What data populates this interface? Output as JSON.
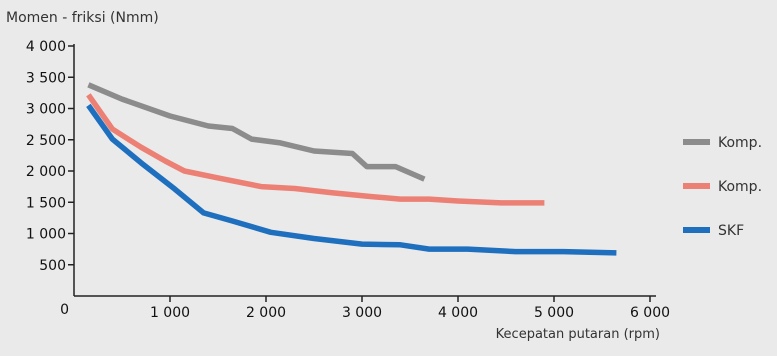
{
  "chart_data": {
    "type": "line",
    "title": "",
    "ylabel": "Momen - friksi (Nmm)",
    "xlabel": "Kecepatan putaran (rpm)",
    "xlim": [
      0,
      6000
    ],
    "ylim": [
      0,
      4000
    ],
    "x_ticks": [
      1000,
      2000,
      3000,
      4000,
      5000,
      6000
    ],
    "x_tick_labels": [
      "1 000",
      "2 000",
      "3 000",
      "4 000",
      "5 000",
      "6 000"
    ],
    "y_ticks": [
      500,
      1000,
      1500,
      2000,
      2500,
      3000,
      3500,
      4000
    ],
    "y_tick_labels": [
      "500",
      "1 000",
      "1 500",
      "2 000",
      "2 500",
      "3 000",
      "3 500",
      "4 000"
    ],
    "origin_label": "0",
    "grid": false,
    "legend_position": "right",
    "series": [
      {
        "name": "Komp.",
        "color": "#8c8c8c",
        "x": [
          150,
          500,
          1000,
          1400,
          1650,
          1850,
          2150,
          2500,
          2900,
          3050,
          3350,
          3650
        ],
        "y": [
          3380,
          3150,
          2880,
          2720,
          2680,
          2510,
          2450,
          2320,
          2280,
          2070,
          2070,
          1870
        ]
      },
      {
        "name": "Komp.",
        "color": "#ec8074",
        "x": [
          150,
          400,
          700,
          950,
          1150,
          1500,
          1950,
          2300,
          2700,
          3100,
          3400,
          3700,
          4000,
          4450,
          4900
        ],
        "y": [
          3220,
          2670,
          2380,
          2160,
          2000,
          1890,
          1750,
          1720,
          1650,
          1590,
          1550,
          1550,
          1520,
          1490,
          1490
        ]
      },
      {
        "name": "SKF",
        "color": "#1f6fbf",
        "x": [
          150,
          400,
          700,
          1050,
          1350,
          1650,
          2050,
          2500,
          3000,
          3400,
          3700,
          4100,
          4600,
          5100,
          5650
        ],
        "y": [
          3050,
          2510,
          2130,
          1710,
          1330,
          1200,
          1020,
          920,
          830,
          820,
          750,
          750,
          710,
          710,
          690
        ]
      }
    ]
  }
}
